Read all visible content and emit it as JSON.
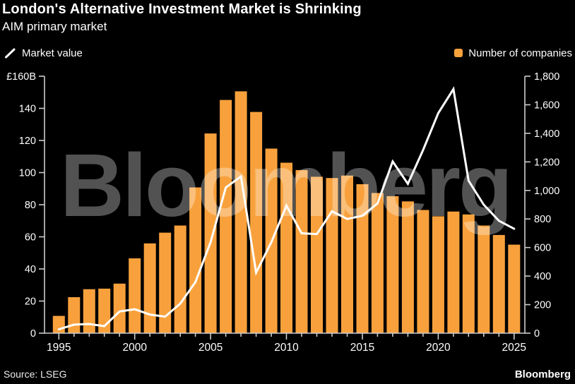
{
  "header": {
    "title": "London's Alternative Investment Market is Shrinking",
    "subtitle": "AIM primary market"
  },
  "legend": {
    "market_value": "Market value",
    "companies": "Number of companies"
  },
  "watermark": "Bloomberg",
  "footer": {
    "source": "Source: LSEG",
    "brand": "Bloomberg"
  },
  "colors": {
    "background": "#000000",
    "bar": "#F8A13C",
    "line": "#FFFFFF",
    "axis": "#CCCCCC",
    "text": "#FFFFFF",
    "watermark": "rgba(255,255,255,0.32)"
  },
  "chart_data": {
    "type": "bar",
    "subtype": "bar-line combo, dual axis",
    "title": "AIM primary market",
    "x": [
      1995,
      1996,
      1997,
      1998,
      1999,
      2000,
      2001,
      2002,
      2003,
      2004,
      2005,
      2006,
      2007,
      2008,
      2009,
      2010,
      2011,
      2012,
      2013,
      2014,
      2015,
      2016,
      2017,
      2018,
      2019,
      2020,
      2021,
      2022,
      2023,
      2024,
      2025
    ],
    "series": [
      {
        "name": "Market value",
        "type": "line",
        "axis": "left",
        "unit": "GBP billions",
        "color": "#FFFFFF",
        "values": [
          2.4,
          5.3,
          5.7,
          4.4,
          13.5,
          14.9,
          11.6,
          10.3,
          18.4,
          31.8,
          56.6,
          90.7,
          97.6,
          37.7,
          56.6,
          79.4,
          62.2,
          61.7,
          75.9,
          71.1,
          73.1,
          80.8,
          106.9,
          93,
          114,
          137,
          152,
          95,
          80,
          70,
          65
        ]
      },
      {
        "name": "Number of companies",
        "type": "bar",
        "axis": "right",
        "unit": "companies",
        "color": "#F8A13C",
        "values": [
          121,
          252,
          308,
          312,
          347,
          524,
          629,
          704,
          754,
          1021,
          1399,
          1634,
          1694,
          1550,
          1293,
          1194,
          1143,
          1096,
          1087,
          1104,
          1044,
          982,
          960,
          923,
          863,
          819,
          852,
          832,
          754,
          688,
          620
        ]
      }
    ],
    "left_axis": {
      "top_label": "£160B",
      "range": [
        0,
        160
      ],
      "ticks": [
        0,
        20,
        40,
        60,
        80,
        100,
        120,
        140,
        160
      ]
    },
    "right_axis": {
      "range": [
        0,
        1800
      ],
      "ticks": [
        0,
        200,
        400,
        600,
        800,
        1000,
        1200,
        1400,
        1600,
        1800
      ]
    },
    "x_axis": {
      "labeled_ticks": [
        1995,
        2000,
        2005,
        2010,
        2015,
        2020,
        2025
      ]
    },
    "grid": false,
    "legend_position": "top"
  }
}
